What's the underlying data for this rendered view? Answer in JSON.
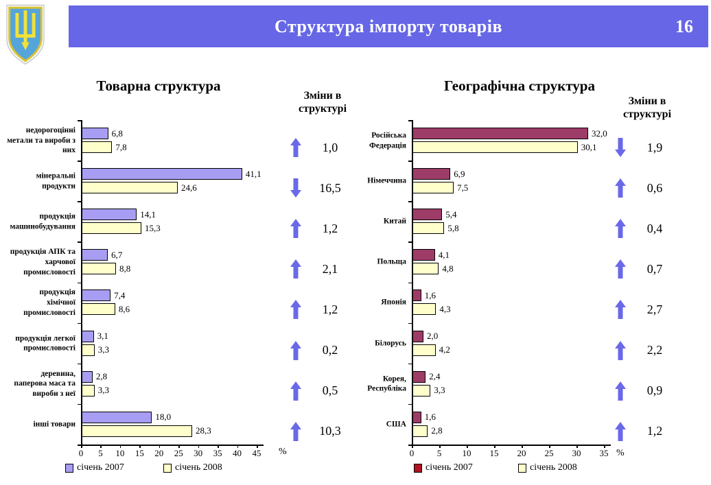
{
  "header": {
    "title": "Структура імпорту товарів",
    "page_number": "16",
    "banner_color": "#6666e6"
  },
  "logo": {
    "name": "coat-of-arms-of-ukraine",
    "shield_color": "#55a5db",
    "trident_color": "#f2e239",
    "border_color": "#d8c22f"
  },
  "arrow_color": "#6a69e8",
  "chart_data": [
    {
      "id": "commodity",
      "type": "bar",
      "orientation": "horizontal",
      "title": "Товарна структура",
      "xlabel": "%",
      "xlim": [
        0,
        45
      ],
      "xticks": [
        0,
        5,
        10,
        15,
        20,
        25,
        30,
        35,
        40,
        45
      ],
      "grid": false,
      "legend_position": "bottom",
      "categories": [
        "недорогоцінні метали та вироби з них",
        "мінеральні продукти",
        "продукція машинобудування",
        "продукція АПК та харчової промисловості",
        "продукція хімічної промисловості",
        "продукція легкої промисловості",
        "деревина, паперова маса та вироби з неї",
        "інші товари"
      ],
      "categories_lines": [
        [
          "недорогоцінні",
          "метали та вироби з",
          "них"
        ],
        [
          "мінеральні",
          "продукти"
        ],
        [
          "продукція",
          "машинобудування"
        ],
        [
          "продукція АПК та",
          "харчової",
          "промисловості"
        ],
        [
          "продукція",
          "хімічної",
          "промисловості"
        ],
        [
          "продукція легкої",
          "промисловості"
        ],
        [
          "деревина,",
          "паперова маса та",
          "вироби з неї"
        ],
        [
          "інші товари"
        ]
      ],
      "series": [
        {
          "name": "січень 2007",
          "color": "#a79df2",
          "legend_color": "#a79df2",
          "values": [
            6.8,
            41.1,
            14.1,
            6.7,
            7.4,
            3.1,
            2.8,
            18.0
          ]
        },
        {
          "name": "січень 2008",
          "color": "#ffffcc",
          "legend_color": "#ffffcc",
          "values": [
            7.8,
            24.6,
            15.3,
            8.8,
            8.6,
            3.3,
            3.3,
            28.3
          ]
        }
      ],
      "changes": {
        "title": "Зміни в структурі",
        "items": [
          {
            "direction": "up",
            "value": 1.0
          },
          {
            "direction": "down",
            "value": 16.5
          },
          {
            "direction": "up",
            "value": 1.2
          },
          {
            "direction": "up",
            "value": 2.1
          },
          {
            "direction": "up",
            "value": 1.2
          },
          {
            "direction": "up",
            "value": 0.2
          },
          {
            "direction": "up",
            "value": 0.5
          },
          {
            "direction": "up",
            "value": 10.3
          }
        ]
      }
    },
    {
      "id": "geography",
      "type": "bar",
      "orientation": "horizontal",
      "title": "Географічна структура",
      "xlabel": "%",
      "xlim": [
        0,
        35
      ],
      "xticks": [
        0,
        5,
        10,
        15,
        20,
        25,
        30,
        35
      ],
      "grid": false,
      "legend_position": "bottom",
      "categories": [
        "Російська Федерація",
        "Німеччина",
        "Китай",
        "Польща",
        "Японія",
        "Білорусь",
        "Корея, Республіка",
        "США"
      ],
      "categories_lines": [
        [
          "Російська",
          "Федерація"
        ],
        [
          "Німеччина"
        ],
        [
          "Китай"
        ],
        [
          "Польща"
        ],
        [
          "Японія"
        ],
        [
          "Білорусь"
        ],
        [
          "Корея,",
          "Республіка"
        ],
        [
          "США"
        ]
      ],
      "series": [
        {
          "name": "січень 2007",
          "color": "#9e3c68",
          "legend_color": "#b01423",
          "values": [
            32.0,
            6.9,
            5.4,
            4.1,
            1.6,
            2.0,
            2.4,
            1.6
          ]
        },
        {
          "name": "січень 2008",
          "color": "#ffffcc",
          "legend_color": "#ffffcc",
          "values": [
            30.1,
            7.5,
            5.8,
            4.8,
            4.3,
            4.2,
            3.3,
            2.8
          ]
        }
      ],
      "changes": {
        "title": "Зміни в структурі",
        "items": [
          {
            "direction": "down",
            "value": 1.9
          },
          {
            "direction": "up",
            "value": 0.6
          },
          {
            "direction": "up",
            "value": 0.4
          },
          {
            "direction": "up",
            "value": 0.7
          },
          {
            "direction": "up",
            "value": 2.7
          },
          {
            "direction": "up",
            "value": 2.2
          },
          {
            "direction": "up",
            "value": 0.9
          },
          {
            "direction": "up",
            "value": 1.2
          }
        ]
      }
    }
  ]
}
